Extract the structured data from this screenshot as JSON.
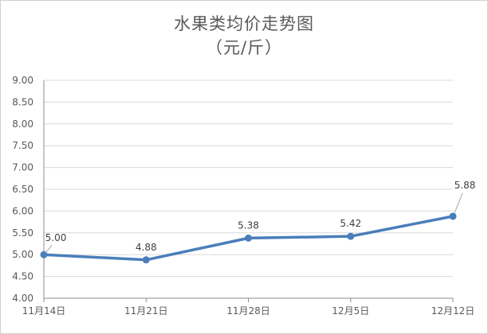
{
  "chart_data": {
    "type": "line",
    "title": "水果类均价走势图",
    "subtitle": "（元/斤）",
    "categories": [
      "11月14日",
      "11月21日",
      "11月28日",
      "12月5日",
      "12月12日"
    ],
    "series": [
      {
        "values": [
          5.0,
          4.88,
          5.38,
          5.42,
          5.88
        ]
      }
    ],
    "data_labels": [
      "5.00",
      "4.88",
      "5.38",
      "5.42",
      "5.88"
    ],
    "ylim": [
      4.0,
      9.0
    ],
    "yticks": [
      "4.00",
      "4.50",
      "5.00",
      "5.50",
      "6.00",
      "6.50",
      "7.00",
      "7.50",
      "8.00",
      "8.50",
      "9.00"
    ],
    "grid": true,
    "legend": "none",
    "colors": {
      "line": "#4a7ebb",
      "grid": "#d9d9d9",
      "axis": "#8c8c8c",
      "text": "#595959"
    }
  }
}
